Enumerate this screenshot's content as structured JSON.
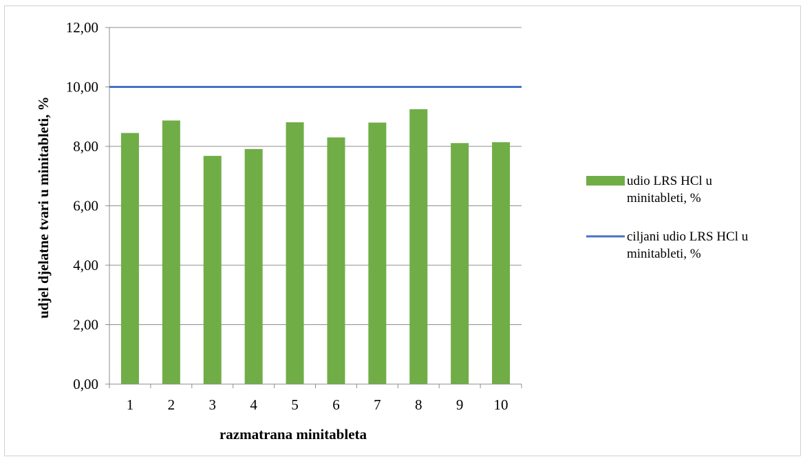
{
  "chart_data": {
    "type": "bar",
    "categories": [
      "1",
      "2",
      "3",
      "4",
      "5",
      "6",
      "7",
      "8",
      "9",
      "10"
    ],
    "series": [
      {
        "name": "udio LRS HCl u minitableti, %",
        "kind": "bar",
        "color": "#70ad47",
        "values": [
          8.45,
          8.87,
          7.68,
          7.91,
          8.81,
          8.3,
          8.8,
          9.25,
          8.11,
          8.14
        ]
      },
      {
        "name": "ciljani udio LRS HCl u minitableti, %",
        "kind": "line",
        "color": "#4472c4",
        "values": [
          10,
          10,
          10,
          10,
          10,
          10,
          10,
          10,
          10,
          10
        ]
      }
    ],
    "xlabel": "razmatrana minitableta",
    "ylabel": "udjel djelatne tvari u minitableti, %",
    "ylim": [
      0,
      12
    ],
    "yticks": [
      "0,00",
      "2,00",
      "4,00",
      "6,00",
      "8,00",
      "10,00",
      "12,00"
    ],
    "grid": true,
    "legend": "right",
    "legend_lines": [
      [
        "udio LRS HCl u",
        "minitableti, %"
      ],
      [
        "ciljani udio LRS HCl u",
        "minitableti, %"
      ]
    ]
  }
}
